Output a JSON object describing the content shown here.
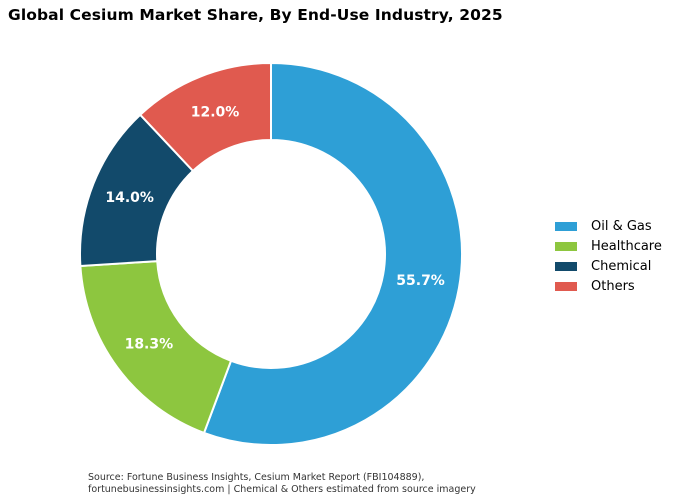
{
  "chart_data": {
    "type": "pie",
    "title": "Global Cesium Market Share, By End-Use Industry, 2025",
    "donut": true,
    "start_angle_deg": 0,
    "direction": "clockwise",
    "categories": [
      "Oil & Gas",
      "Healthcare",
      "Chemical",
      "Others"
    ],
    "values": [
      55.7,
      18.3,
      14.0,
      12.0
    ],
    "value_labels": [
      "55.7%",
      "18.3%",
      "14.0%",
      "12.0%"
    ],
    "colors": [
      "#2e9fd6",
      "#8dc63f",
      "#124a6b",
      "#e05a4f"
    ],
    "legend_position": "right",
    "source_lines": [
      "Source: Fortune Business Insights, Cesium Market Report (FBI104889),",
      "fortunebusinessinsights.com  |  Chemical & Others estimated from source imagery"
    ]
  }
}
